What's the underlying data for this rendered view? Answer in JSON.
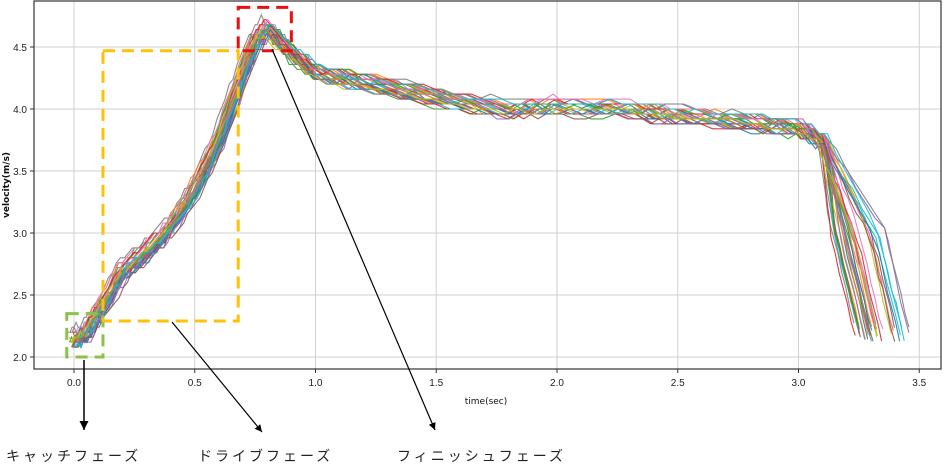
{
  "chart_data": {
    "type": "line",
    "title": "",
    "xlabel": "time(sec)",
    "ylabel": "velocity(m/s)",
    "xlim": [
      -0.17,
      3.6
    ],
    "ylim": [
      1.95,
      4.85
    ],
    "xticks": [
      "0.0",
      "0.5",
      "1.0",
      "1.5",
      "2.0",
      "2.5",
      "3.0",
      "3.5"
    ],
    "yticks": [
      "2.0",
      "2.5",
      "3.0",
      "3.5",
      "4.0",
      "4.5"
    ],
    "grid": true,
    "legend": "none",
    "description": "Many overlapping velocity traces (repeated strokes) of a rowing/skating motion; each trace starts ~2.15 m/s, rises to a peak ~4.65 m/s at ~0.8 s, decays slowly to ~3.85 m/s by ~3.0 s, then drops sharply to ~2.15 m/s at ~3.2-3.4 s.",
    "series_colors": [
      "#1f77b4",
      "#ff7f0e",
      "#2ca02c",
      "#d62728",
      "#9467bd",
      "#8c564b",
      "#e377c2",
      "#7f7f7f",
      "#bcbd22",
      "#17becf"
    ],
    "representative_series": {
      "x": [
        0.0,
        0.05,
        0.1,
        0.2,
        0.3,
        0.4,
        0.5,
        0.6,
        0.7,
        0.75,
        0.8,
        0.9,
        1.0,
        1.2,
        1.5,
        1.8,
        2.0,
        2.3,
        2.5,
        2.8,
        3.0,
        3.1,
        3.2,
        3.3
      ],
      "y": [
        2.15,
        2.2,
        2.35,
        2.7,
        2.85,
        3.05,
        3.35,
        3.75,
        4.3,
        4.55,
        4.65,
        4.45,
        4.3,
        4.22,
        4.1,
        4.0,
        4.02,
        4.0,
        3.95,
        3.9,
        3.85,
        3.75,
        3.0,
        2.2
      ]
    },
    "annotations": [
      {
        "label": "キャッチフェーズ",
        "box": {
          "x": [
            -0.03,
            0.12
          ],
          "y": [
            2.0,
            2.35
          ]
        },
        "box_color": "#8bc34a"
      },
      {
        "label": "ドライブフェーズ",
        "box": {
          "x": [
            0.12,
            0.68
          ],
          "y": [
            2.29,
            4.47
          ]
        },
        "box_color": "#ffc107"
      },
      {
        "label": "フィニッシュフェーズ",
        "box": {
          "x": [
            0.68,
            0.9
          ],
          "y": [
            4.47,
            4.82
          ]
        },
        "box_color": "#e81010"
      }
    ]
  },
  "phases": {
    "catch": "キャッチフェーズ",
    "drive": "ドライブフェーズ",
    "finish": "フィニッシュフェーズ"
  }
}
